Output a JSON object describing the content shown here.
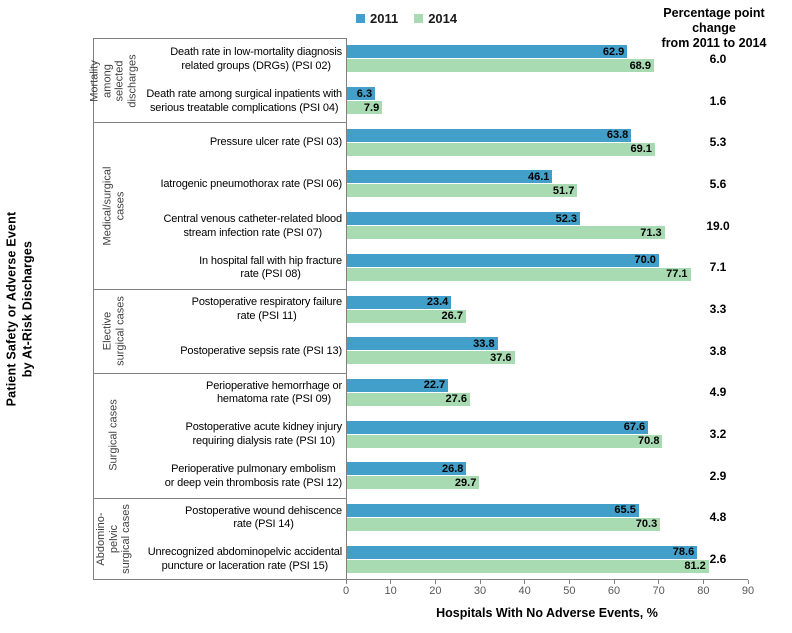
{
  "legend": {
    "items": [
      {
        "label": "2011",
        "color": "#429FC9"
      },
      {
        "label": "2014",
        "color": "#A9DBB2"
      }
    ]
  },
  "right_header": {
    "text": "Percentage point\nchange\nfrom 2011 to 2014"
  },
  "y_axis": {
    "title": "Patient Safety or Adverse Event\nby At-Risk  Discharges"
  },
  "x_axis": {
    "label": "Hospitals With No Adverse Events, %",
    "ticks": [
      "0",
      "10",
      "20",
      "30",
      "40",
      "50",
      "60",
      "70",
      "80",
      "90"
    ],
    "max": 90
  },
  "chart_data": {
    "type": "bar",
    "orientation": "horizontal",
    "series_names": [
      "2011",
      "2014"
    ],
    "colors": [
      "#429FC9",
      "#A9DBB2"
    ],
    "xlabel": "Hospitals With No Adverse Events, %",
    "ylabel": "Patient Safety or Adverse Event by At-Risk Discharges",
    "xlim": [
      0,
      90
    ],
    "right_column_header": "Percentage point change from 2011 to 2014",
    "legend_position": "top",
    "grid": false,
    "groups": [
      {
        "group": "Mortality\namong\nselected\ndischarges",
        "rows": [
          {
            "label": "Death rate in low-mortality diagnosis\nrelated groups (DRGs) (PSI 02)",
            "values": [
              62.9,
              68.9
            ],
            "change": 6.0
          },
          {
            "label": "Death rate among surgical inpatients with\nserious treatable complications (PSI 04)",
            "values": [
              6.3,
              7.9
            ],
            "change": 1.6
          }
        ]
      },
      {
        "group": "Medical/surgical\ncases",
        "rows": [
          {
            "label": "Pressure ulcer rate (PSI 03)",
            "values": [
              63.8,
              69.1
            ],
            "change": 5.3
          },
          {
            "label": "Iatrogenic pneumothorax rate (PSI 06)",
            "values": [
              46.1,
              51.7
            ],
            "change": 5.6
          },
          {
            "label": "Central venous catheter-related blood\nstream infection rate (PSI 07)",
            "values": [
              52.3,
              71.3
            ],
            "change": 19.0
          },
          {
            "label": "In hospital fall with hip fracture\nrate (PSI 08)",
            "values": [
              70.0,
              77.1
            ],
            "change": 7.1
          }
        ]
      },
      {
        "group": "Elective\nsurgical cases",
        "rows": [
          {
            "label": "Postoperative respiratory failure\nrate (PSI 11)",
            "values": [
              23.4,
              26.7
            ],
            "change": 3.3
          },
          {
            "label": "Postoperative sepsis rate (PSI 13)",
            "values": [
              33.8,
              37.6
            ],
            "change": 3.8
          }
        ]
      },
      {
        "group": "Surgical cases",
        "rows": [
          {
            "label": "Perioperative hemorrhage or\nhematoma rate (PSI 09)",
            "values": [
              22.7,
              27.6
            ],
            "change": 4.9
          },
          {
            "label": "Postoperative acute kidney injury\nrequiring dialysis rate (PSI 10)",
            "values": [
              67.6,
              70.8
            ],
            "change": 3.2
          },
          {
            "label": "Perioperative pulmonary embolism\nor deep vein thrombosis rate (PSI 12)",
            "values": [
              26.8,
              29.7
            ],
            "change": 2.9
          }
        ]
      },
      {
        "group": "Abdomino-\npelvic\nsurgical cases",
        "rows": [
          {
            "label": "Postoperative wound dehiscence\nrate (PSI 14)",
            "values": [
              65.5,
              70.3
            ],
            "change": 4.8
          },
          {
            "label": "Unrecognized abdominopelvic accidental\npuncture or laceration rate (PSI 15)",
            "values": [
              78.6,
              81.2
            ],
            "change": 2.6
          }
        ]
      }
    ]
  }
}
